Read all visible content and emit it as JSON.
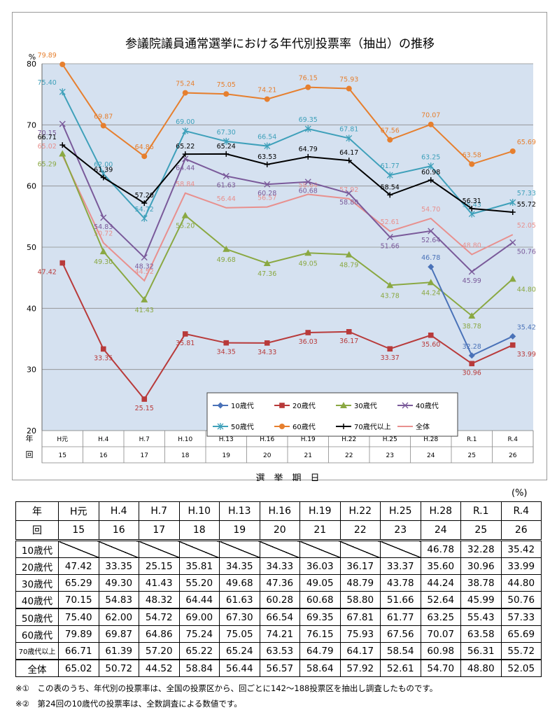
{
  "chart_data": {
    "type": "line",
    "title": "参議院議員通常選挙における年代別投票率（抽出）の推移",
    "ylabel": "%",
    "xlabel": "選　挙　期　日",
    "ylim": [
      20,
      80
    ],
    "yticks": [
      20,
      30,
      40,
      50,
      60,
      70,
      80
    ],
    "grid": true,
    "legend_position": "inside-bottom-right",
    "row_label_year": "年",
    "row_label_round": "回",
    "categories": [
      "H元",
      "H.4",
      "H.7",
      "H.10",
      "H.13",
      "H.16",
      "H.19",
      "H.22",
      "H.25",
      "H.28",
      "R.1",
      "R.4"
    ],
    "rounds": [
      "15",
      "16",
      "17",
      "18",
      "19",
      "20",
      "21",
      "22",
      "23",
      "24",
      "25",
      "26"
    ],
    "series": [
      {
        "name": "10歳代",
        "color": "#4a72b8",
        "marker": "diamond",
        "values": [
          null,
          null,
          null,
          null,
          null,
          null,
          null,
          null,
          null,
          46.78,
          32.28,
          35.42
        ]
      },
      {
        "name": "20歳代",
        "color": "#b83a3a",
        "marker": "square",
        "values": [
          47.42,
          33.35,
          25.15,
          35.81,
          34.35,
          34.33,
          36.03,
          36.17,
          33.37,
          35.6,
          30.96,
          33.99
        ]
      },
      {
        "name": "30歳代",
        "color": "#8aa842",
        "marker": "triangle",
        "values": [
          65.29,
          49.3,
          41.43,
          55.2,
          49.68,
          47.36,
          49.05,
          48.79,
          43.78,
          44.24,
          38.78,
          44.8
        ]
      },
      {
        "name": "40歳代",
        "color": "#7a5a9a",
        "marker": "x",
        "values": [
          70.15,
          54.83,
          48.32,
          64.44,
          61.63,
          60.28,
          60.68,
          58.8,
          51.66,
          52.64,
          45.99,
          50.76
        ]
      },
      {
        "name": "50歳代",
        "color": "#3ea0ba",
        "marker": "star",
        "values": [
          75.4,
          62.0,
          54.72,
          69.0,
          67.3,
          66.54,
          69.35,
          67.81,
          61.77,
          63.25,
          55.43,
          57.33
        ]
      },
      {
        "name": "60歳代",
        "color": "#e67f2e",
        "marker": "circle",
        "values": [
          79.89,
          69.87,
          64.86,
          75.24,
          75.05,
          74.21,
          76.15,
          75.93,
          67.56,
          70.07,
          63.58,
          65.69
        ]
      },
      {
        "name": "70歳代以上",
        "color": "#000000",
        "marker": "plus",
        "values": [
          66.71,
          61.39,
          57.2,
          65.22,
          65.24,
          63.53,
          64.79,
          64.17,
          58.54,
          60.98,
          56.31,
          55.72
        ]
      },
      {
        "name": "全体",
        "color": "#e8908e",
        "marker": "none",
        "values": [
          65.02,
          50.72,
          44.52,
          58.84,
          56.44,
          56.57,
          58.64,
          57.92,
          52.61,
          54.7,
          48.8,
          52.05
        ]
      }
    ]
  },
  "table": {
    "unit": "(%)",
    "year_label": "年",
    "round_label": "回",
    "years": [
      "H元",
      "H.4",
      "H.7",
      "H.10",
      "H.13",
      "H.16",
      "H.19",
      "H.22",
      "H.25",
      "H.28",
      "R.1",
      "R.4"
    ],
    "rounds": [
      "15",
      "16",
      "17",
      "18",
      "19",
      "20",
      "21",
      "22",
      "23",
      "24",
      "25",
      "26"
    ],
    "rows": [
      {
        "label": "10歳代",
        "values": [
          "",
          "",
          "",
          "",
          "",
          "",
          "",
          "",
          "",
          "46.78",
          "32.28",
          "35.42"
        ]
      },
      {
        "label": "20歳代",
        "values": [
          "47.42",
          "33.35",
          "25.15",
          "35.81",
          "34.35",
          "34.33",
          "36.03",
          "36.17",
          "33.37",
          "35.60",
          "30.96",
          "33.99"
        ]
      },
      {
        "label": "30歳代",
        "values": [
          "65.29",
          "49.30",
          "41.43",
          "55.20",
          "49.68",
          "47.36",
          "49.05",
          "48.79",
          "43.78",
          "44.24",
          "38.78",
          "44.80"
        ]
      },
      {
        "label": "40歳代",
        "values": [
          "70.15",
          "54.83",
          "48.32",
          "64.44",
          "61.63",
          "60.28",
          "60.68",
          "58.80",
          "51.66",
          "52.64",
          "45.99",
          "50.76"
        ]
      },
      {
        "label": "50歳代",
        "values": [
          "75.40",
          "62.00",
          "54.72",
          "69.00",
          "67.30",
          "66.54",
          "69.35",
          "67.81",
          "61.77",
          "63.25",
          "55.43",
          "57.33"
        ]
      },
      {
        "label": "60歳代",
        "values": [
          "79.89",
          "69.87",
          "64.86",
          "75.24",
          "75.05",
          "74.21",
          "76.15",
          "75.93",
          "67.56",
          "70.07",
          "63.58",
          "65.69"
        ]
      },
      {
        "label": "70歳代以上",
        "values": [
          "66.71",
          "61.39",
          "57.20",
          "65.22",
          "65.24",
          "63.53",
          "64.79",
          "64.17",
          "58.54",
          "60.98",
          "56.31",
          "55.72"
        ]
      },
      {
        "label": "全体",
        "values": [
          "65.02",
          "50.72",
          "44.52",
          "58.84",
          "56.44",
          "56.57",
          "58.64",
          "57.92",
          "52.61",
          "54.70",
          "48.80",
          "52.05"
        ]
      }
    ]
  },
  "notes": [
    "※①　この表のうち、年代別の投票率は、全国の投票区から、回ごとに142～188投票区を抽出し調査したものです。",
    "※②　第24回の10歳代の投票率は、全数調査による数値です。"
  ]
}
